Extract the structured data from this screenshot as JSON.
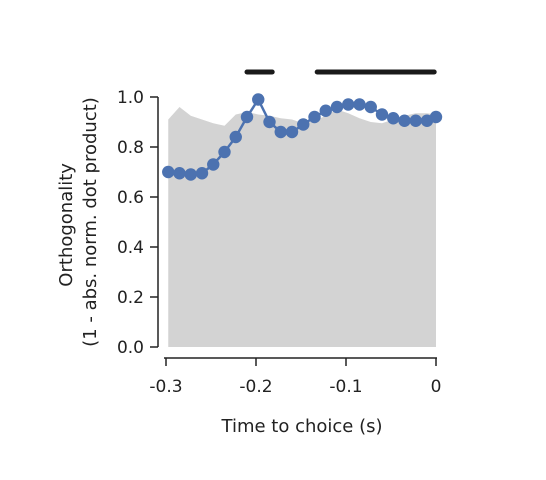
{
  "chart_data": {
    "type": "line",
    "xlabel": "Time to choice (s)",
    "ylabel_lines": [
      "Orthogonality",
      "(1 - abs. norm. dot product)"
    ],
    "xlim": [
      -0.3,
      0.0
    ],
    "ylim": [
      0.0,
      1.0
    ],
    "x_ticks": [
      -0.3,
      -0.2,
      -0.1,
      0.0
    ],
    "x_tick_labels": [
      "-0.3",
      "-0.2",
      "-0.1",
      "0"
    ],
    "y_ticks": [
      0.0,
      0.2,
      0.4,
      0.6,
      0.8,
      1.0
    ],
    "y_tick_labels": [
      "0.0",
      "0.2",
      "0.4",
      "0.6",
      "0.8",
      "1.0"
    ],
    "grid": false,
    "series": [
      {
        "x": [
          -0.2975,
          -0.285,
          -0.2725,
          -0.26,
          -0.2475,
          -0.235,
          -0.2225,
          -0.21,
          -0.1975,
          -0.185,
          -0.1725,
          -0.16,
          -0.1475,
          -0.135,
          -0.1225,
          -0.11,
          -0.0975,
          -0.085,
          -0.0725,
          -0.06,
          -0.0475,
          -0.035,
          -0.0225,
          -0.01,
          0.0
        ],
        "values": [
          0.7,
          0.695,
          0.69,
          0.695,
          0.73,
          0.78,
          0.84,
          0.92,
          0.99,
          0.9,
          0.86,
          0.86,
          0.89,
          0.92,
          0.945,
          0.96,
          0.97,
          0.97,
          0.96,
          0.93,
          0.915,
          0.905,
          0.905,
          0.905,
          0.92
        ],
        "color": "#4C72B0"
      }
    ],
    "null_band": {
      "x": [
        -0.2975,
        -0.285,
        -0.2725,
        -0.26,
        -0.2475,
        -0.235,
        -0.2225,
        -0.21,
        -0.1975,
        -0.185,
        -0.1725,
        -0.16,
        -0.1475,
        -0.135,
        -0.1225,
        -0.11,
        -0.0975,
        -0.085,
        -0.0725,
        -0.06,
        -0.0475,
        -0.035,
        -0.0225,
        -0.01,
        0.0
      ],
      "upper": [
        0.91,
        0.96,
        0.925,
        0.91,
        0.895,
        0.885,
        0.93,
        0.94,
        0.93,
        0.925,
        0.915,
        0.91,
        0.895,
        0.905,
        0.925,
        0.95,
        0.935,
        0.915,
        0.9,
        0.895,
        0.91,
        0.925,
        0.935,
        0.935,
        0.93
      ],
      "lower": 0.0,
      "color": "#d3d3d3"
    },
    "significance_bars": [
      {
        "x_start": -0.21,
        "x_end": -0.182
      },
      {
        "x_start": -0.132,
        "x_end": -0.002
      }
    ],
    "significance_color": "#1a1a1a"
  }
}
